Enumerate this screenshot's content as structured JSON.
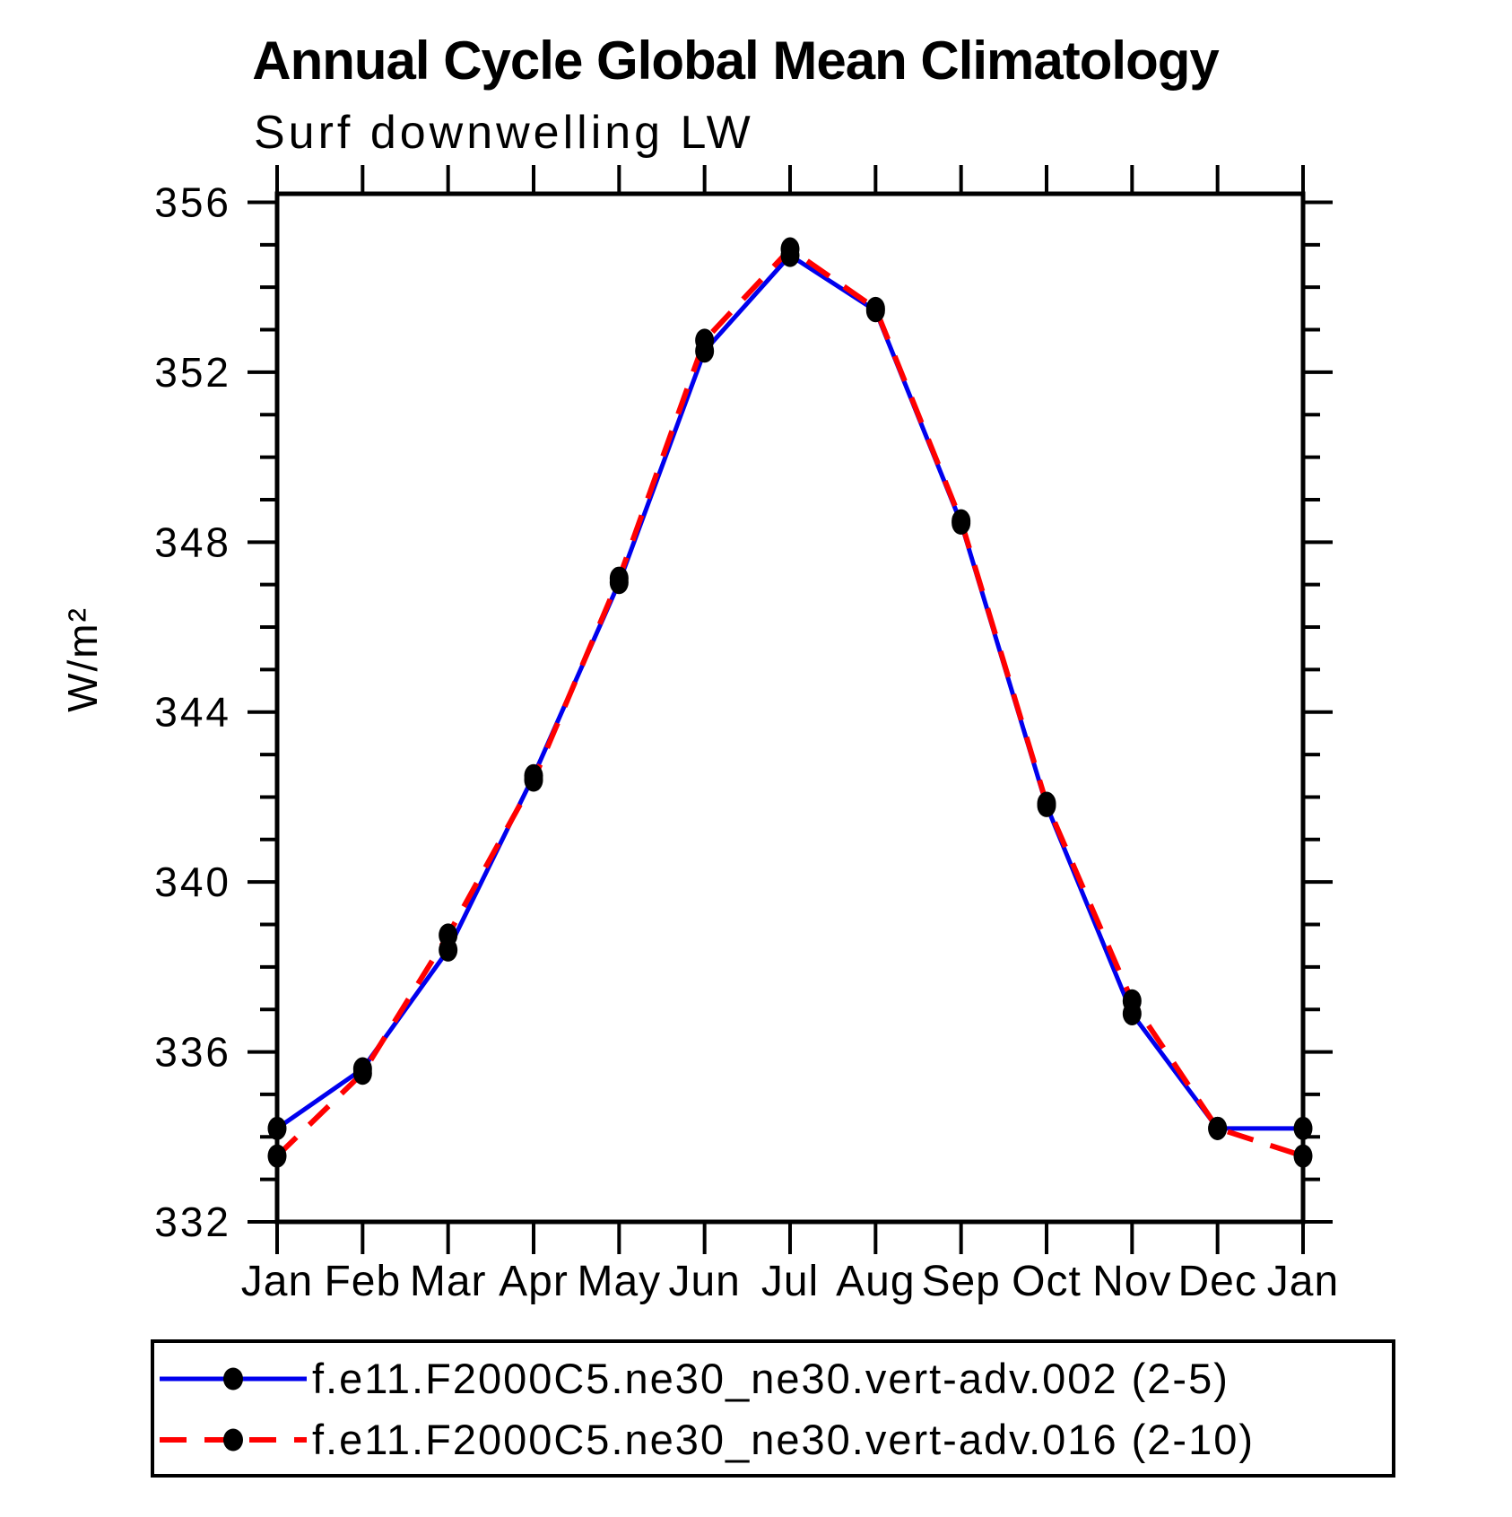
{
  "chart": {
    "title": "Annual Cycle Global Mean Climatology",
    "subtitle": "Surf downwelling LW",
    "ylabel": "W/m²"
  },
  "legend": {
    "items": [
      {
        "label": "f.e11.F2000C5.ne30_ne30.vert-adv.002 (2-5)",
        "color": "#0000ee",
        "style": "solid"
      },
      {
        "label": "f.e11.F2000C5.ne30_ne30.vert-adv.016 (2-10)",
        "color": "#ff0000",
        "style": "dashed"
      }
    ],
    "marker_color": "#000000"
  },
  "chart_data": {
    "type": "line",
    "title": "Annual Cycle Global Mean Climatology",
    "subtitle": "Surf downwelling LW",
    "xlabel": "",
    "ylabel": "W/m²",
    "categories": [
      "Jan",
      "Feb",
      "Mar",
      "Apr",
      "May",
      "Jun",
      "Jul",
      "Aug",
      "Sep",
      "Oct",
      "Nov",
      "Dec",
      "Jan"
    ],
    "series": [
      {
        "name": "f.e11.F2000C5.ne30_ne30.vert-adv.002 (2-5)",
        "color": "#0000ee",
        "line_style": "solid",
        "values": [
          334.2,
          335.6,
          338.4,
          342.5,
          347.05,
          352.5,
          354.75,
          353.45,
          348.45,
          341.8,
          336.9,
          334.2,
          334.2
        ]
      },
      {
        "name": "f.e11.F2000C5.ne30_ne30.vert-adv.016 (2-10)",
        "color": "#ff0000",
        "line_style": "dashed",
        "values": [
          333.55,
          335.5,
          338.75,
          342.4,
          347.15,
          352.75,
          354.9,
          353.5,
          348.5,
          341.85,
          337.2,
          334.2,
          333.55
        ]
      }
    ],
    "ylim": [
      332,
      356.2
    ],
    "yticks_major": [
      332,
      336,
      340,
      344,
      348,
      352,
      356
    ],
    "ytick_minor_step": 1,
    "grid": false,
    "legend_position": "bottom",
    "marker": "filled-circle",
    "marker_color": "#000000"
  }
}
